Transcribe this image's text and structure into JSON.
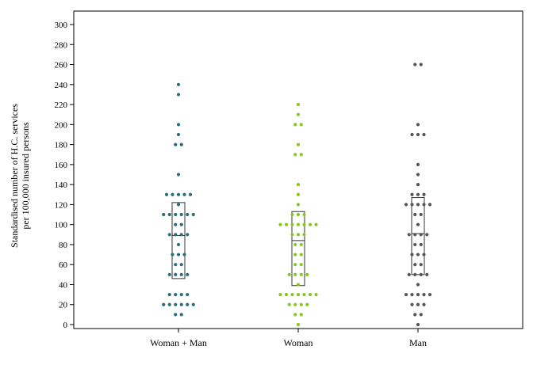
{
  "chart_data": {
    "type": "scatter",
    "subtype": "dot-plot-with-boxes",
    "title": "",
    "ylabel": [
      "Standardised number of H.C. services",
      "per 100,000 insured persons"
    ],
    "xlabel": "",
    "ylim": [
      0,
      310
    ],
    "yticks": [
      0,
      20,
      40,
      60,
      80,
      100,
      120,
      140,
      160,
      180,
      200,
      220,
      240,
      260,
      280,
      300
    ],
    "grid": false,
    "categories": [
      "Woman + Man",
      "Woman",
      "Man"
    ],
    "series": [
      {
        "category": "Woman + Man",
        "color": "#2a6f73",
        "values": [
          10,
          10,
          20,
          20,
          20,
          20,
          20,
          20,
          30,
          30,
          30,
          30,
          50,
          50,
          50,
          50,
          60,
          60,
          70,
          70,
          70,
          80,
          90,
          90,
          90,
          90,
          100,
          100,
          110,
          110,
          110,
          110,
          110,
          110,
          120,
          130,
          130,
          130,
          130,
          130,
          150,
          180,
          180,
          190,
          200,
          230,
          240
        ],
        "box": {
          "q1": 46,
          "median": 89,
          "q3": 122
        }
      },
      {
        "category": "Woman",
        "color": "#8bc524",
        "values": [
          0,
          10,
          10,
          20,
          20,
          20,
          20,
          30,
          30,
          30,
          30,
          30,
          30,
          30,
          40,
          50,
          50,
          50,
          50,
          60,
          60,
          70,
          70,
          80,
          80,
          90,
          90,
          90,
          100,
          100,
          100,
          100,
          100,
          100,
          100,
          110,
          110,
          110,
          120,
          130,
          140,
          170,
          170,
          180,
          200,
          200,
          210,
          220
        ],
        "box": {
          "q1": 39,
          "median": 84,
          "q3": 113
        }
      },
      {
        "category": "Man",
        "color": "#555555",
        "values": [
          0,
          10,
          10,
          20,
          20,
          20,
          30,
          30,
          30,
          30,
          30,
          40,
          50,
          50,
          50,
          50,
          60,
          60,
          70,
          70,
          70,
          80,
          80,
          90,
          90,
          90,
          90,
          100,
          110,
          110,
          120,
          120,
          120,
          120,
          120,
          130,
          130,
          130,
          140,
          150,
          160,
          190,
          190,
          190,
          200,
          260,
          260
        ],
        "box": {
          "q1": 50,
          "median": 91,
          "q3": 127
        }
      }
    ]
  }
}
